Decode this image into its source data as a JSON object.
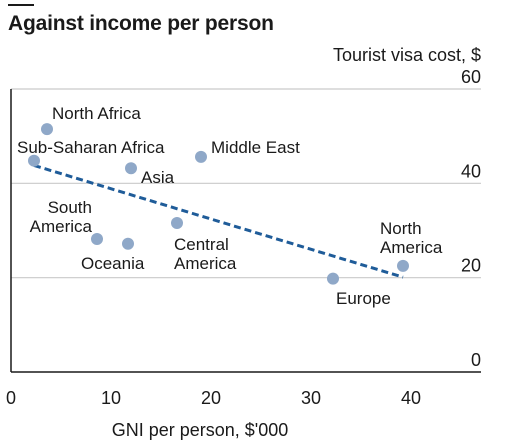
{
  "title": "Against income per person",
  "chart_data": {
    "type": "scatter",
    "title": "Against income per person",
    "xlabel": "GNI per person, $'000",
    "ylabel": "Tourist visa cost, $",
    "xlim": [
      0,
      47
    ],
    "ylim": [
      0,
      60
    ],
    "x_ticks": [
      0,
      10,
      20,
      30,
      40
    ],
    "y_ticks": [
      0,
      20,
      40,
      60
    ],
    "grid": "horizontal",
    "colors": {
      "points": "#8fa8c8",
      "trend": "#1f5c99",
      "grid": "#c9c9c9",
      "axis": "#1a1a1a"
    },
    "points": [
      {
        "label": "North Africa",
        "x": 3.6,
        "y": 51.5
      },
      {
        "label": "Sub-Saharan Africa",
        "x": 2.3,
        "y": 44.8
      },
      {
        "label": "Asia",
        "x": 12.0,
        "y": 43.2
      },
      {
        "label": "Middle East",
        "x": 19.0,
        "y": 45.6
      },
      {
        "label": "South America",
        "x": 8.6,
        "y": 28.2
      },
      {
        "label": "Oceania",
        "x": 11.7,
        "y": 27.2
      },
      {
        "label": "Central America",
        "x": 16.6,
        "y": 31.6
      },
      {
        "label": "Europe",
        "x": 32.2,
        "y": 19.8
      },
      {
        "label": "North America",
        "x": 39.2,
        "y": 22.5
      }
    ],
    "trend_line": {
      "x": [
        2.3,
        39.2
      ],
      "y": [
        43.8,
        20.1
      ]
    }
  }
}
